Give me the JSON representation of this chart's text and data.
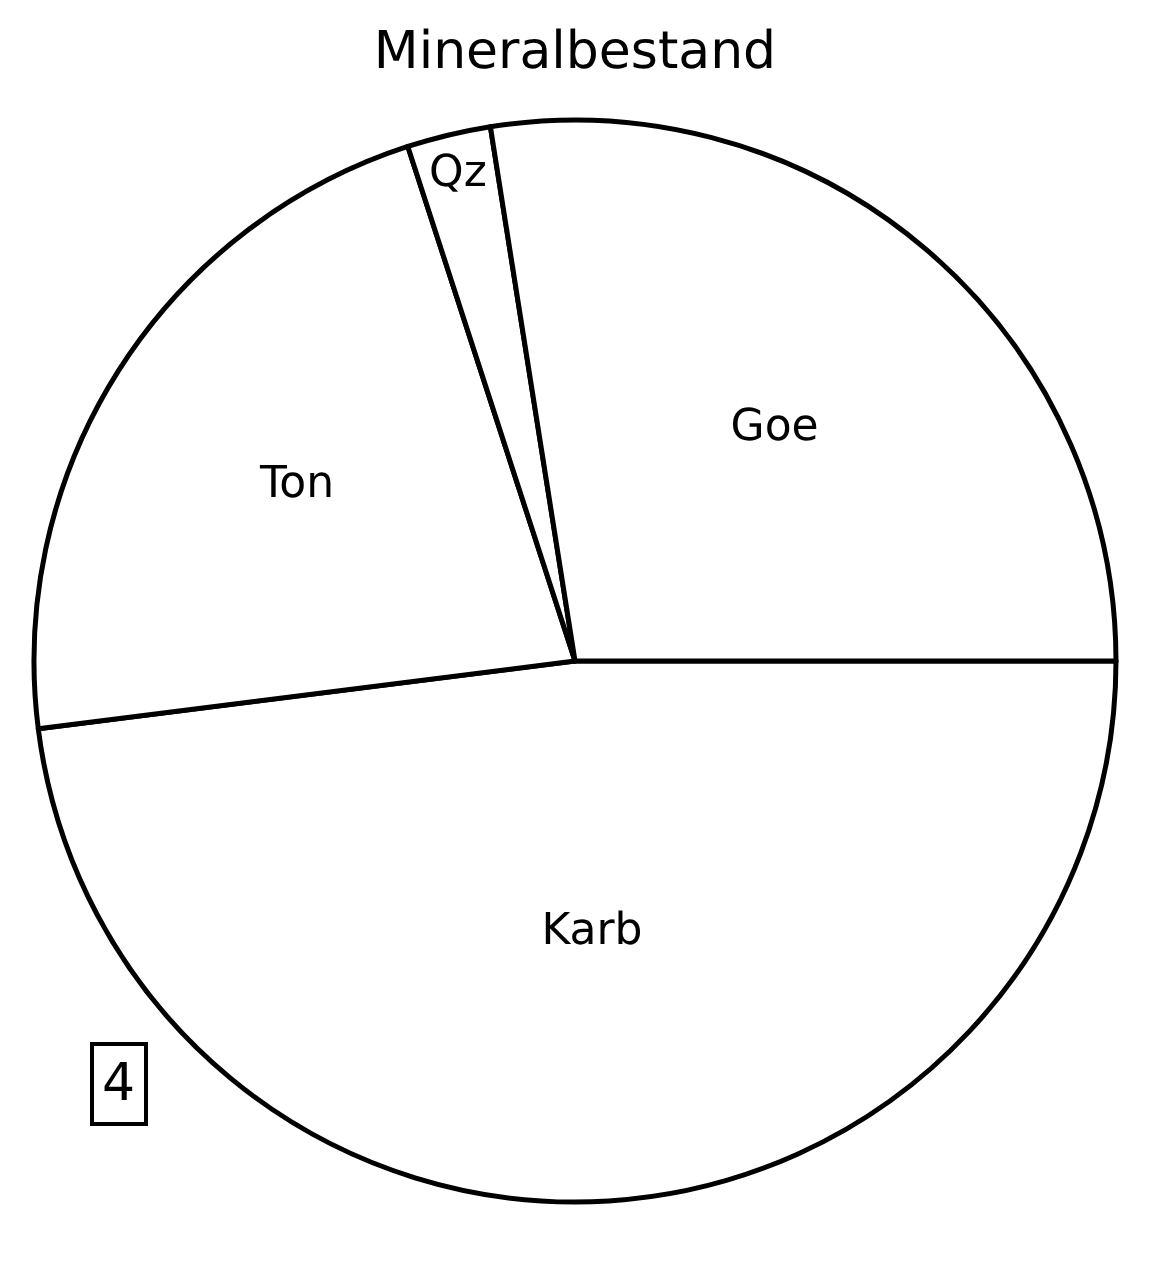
{
  "chart_data": {
    "type": "pie",
    "title": "Mineralbestand",
    "categories": [
      "Karb",
      "Ton",
      "Qz",
      "Goe"
    ],
    "values": [
      48,
      22,
      2.5,
      27.5
    ],
    "colors": [
      "#ffffff",
      "#ffffff",
      "#ffffff",
      "#ffffff"
    ],
    "legend": false,
    "annotations": [
      "4"
    ]
  }
}
